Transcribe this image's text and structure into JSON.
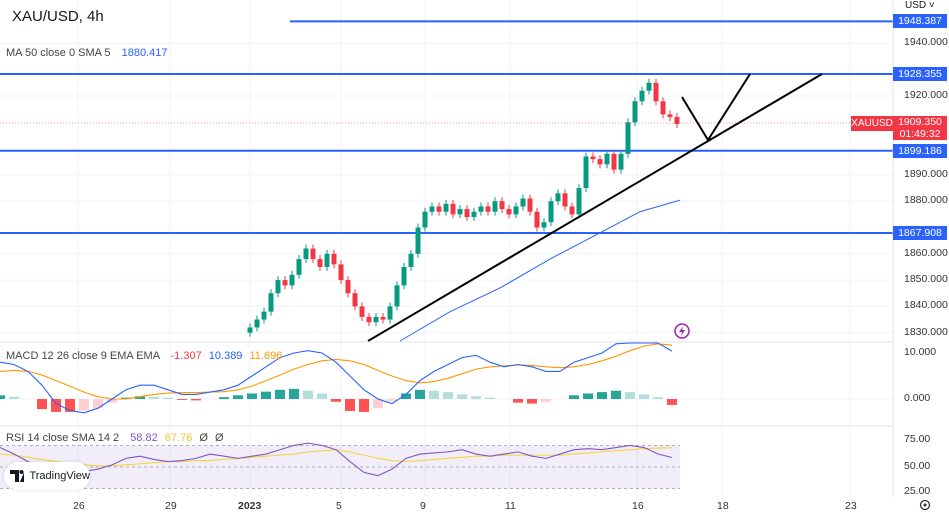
{
  "header": {
    "symbol_title": "XAU/USD, 4h",
    "currency": "USD ˅"
  },
  "ma_indicator": {
    "label": "MA 50 close 0 SMA 5",
    "value": "1880.417"
  },
  "macd_indicator": {
    "label": "MACD 12 26 close 9 EMA EMA",
    "hist": "-1.307",
    "macd": "10.389",
    "signal": "11.696"
  },
  "rsi_indicator": {
    "label": "RSI 14 close SMA 14 2",
    "rsi": "58.82",
    "ma": "67.76",
    "extra1": "Ø",
    "extra2": "Ø"
  },
  "price_axis": [
    "1940.000",
    "1920.000",
    "1890.000",
    "1880.000",
    "1860.000",
    "1850.000",
    "1840.000",
    "1830.000"
  ],
  "level_tags": [
    "1948.387",
    "1928.355",
    "1899.186",
    "1867.908"
  ],
  "current_price": {
    "symbol": "XAUUSD",
    "price": "1909.350",
    "countdown": "01:49:32"
  },
  "macd_axis": [
    "10.000",
    "0.000"
  ],
  "rsi_axis": [
    "75.00",
    "50.00",
    "25.00"
  ],
  "time_axis": [
    "26",
    "29",
    "2023",
    "5",
    "9",
    "11",
    "16",
    "18",
    "23"
  ],
  "branding": {
    "logo_text": "TradingView"
  },
  "colors": {
    "up": "#089981",
    "down": "#f23645",
    "level": "#2962ff",
    "ma": "#2962ff",
    "macd": "#2962ff",
    "signal": "#ff9800",
    "rsi": "#7e57c2",
    "rsi_ma": "#f5d33f"
  },
  "chart_data": {
    "type": "candlestick",
    "price_range": [
      1826,
      1952
    ],
    "horizontal_levels": [
      1948.387,
      1928.355,
      1899.186,
      1867.908
    ],
    "closes": [
      1832,
      1835,
      1838,
      1845,
      1850,
      1848,
      1852,
      1858,
      1862,
      1858,
      1855,
      1860,
      1856,
      1850,
      1845,
      1840,
      1836,
      1834,
      1836,
      1835,
      1840,
      1848,
      1855,
      1860,
      1870,
      1876,
      1878,
      1876,
      1879,
      1875,
      1877,
      1874,
      1876,
      1878,
      1876,
      1880,
      1877,
      1875,
      1878,
      1881,
      1876,
      1870,
      1872,
      1880,
      1883,
      1878,
      1875,
      1885,
      1897,
      1896,
      1894,
      1898,
      1892,
      1898,
      1910,
      1918,
      1922,
      1925,
      1918,
      1913,
      1912,
      1909.35
    ],
    "ma50": [
      1826,
      1838,
      1847,
      1858,
      1868,
      1876,
      1880.417
    ],
    "macd": [
      8,
      7.5,
      6,
      3,
      -1,
      -2.5,
      -3,
      -2,
      0,
      2,
      3,
      3,
      2,
      1,
      1,
      1.5,
      2,
      3,
      5,
      7,
      9,
      10,
      10.5,
      10,
      8,
      5,
      2,
      0,
      -1,
      1,
      4,
      6,
      7.5,
      9,
      9.5,
      8,
      7,
      7.5,
      7,
      6,
      6,
      8,
      9,
      10,
      12,
      13,
      13.5,
      12.5,
      10.4
    ],
    "signal": [
      6,
      6.2,
      6,
      5.2,
      4,
      2.8,
      1.5,
      0.5,
      0,
      0,
      0.5,
      1,
      1.3,
      1.4,
      1.4,
      1.5,
      1.6,
      2,
      2.8,
      4,
      5.2,
      6.5,
      7.5,
      8.3,
      8.6,
      8.3,
      7.5,
      6.2,
      5,
      4,
      3.5,
      3.8,
      4.5,
      5.5,
      6.5,
      7,
      7.2,
      7.4,
      7.3,
      7,
      6.8,
      7,
      7.5,
      8.3,
      9.3,
      10.5,
      11.5,
      12,
      11.7
    ],
    "histogram": [
      0.8,
      0.5,
      0,
      -2.2,
      -2.8,
      -2.8,
      -2.5,
      -2,
      -0.8,
      0.3,
      0.6,
      0.5,
      0.3,
      -0.2,
      -0.3,
      0,
      0.4,
      0.8,
      1.2,
      1.6,
      2,
      2.2,
      1.8,
      1.2,
      -0.6,
      -2.6,
      -2.8,
      -2,
      -0.5,
      1.2,
      2,
      1.8,
      1.5,
      1,
      0.6,
      0.3,
      0,
      -0.8,
      -1,
      -0.6,
      0,
      0.8,
      1.2,
      1.5,
      1.8,
      1.5,
      1,
      0.4,
      -1.3
    ],
    "rsi": [
      68,
      62,
      55,
      50,
      47,
      45,
      46,
      48,
      52,
      58,
      60,
      57,
      55,
      56,
      58,
      62,
      60,
      58,
      60,
      62,
      66,
      70,
      72,
      70,
      66,
      55,
      45,
      42,
      48,
      58,
      62,
      63,
      64,
      66,
      62,
      60,
      62,
      64,
      60,
      58,
      62,
      66,
      67,
      66,
      68,
      70,
      68,
      62,
      58.82
    ],
    "rsi_ma": [
      62,
      61,
      59,
      57,
      55,
      53,
      52,
      51,
      51,
      52,
      53,
      54,
      55,
      55,
      56,
      56,
      57,
      58,
      59,
      60,
      61,
      62,
      64,
      65,
      66,
      64,
      61,
      58,
      56,
      55,
      56,
      57,
      58,
      59,
      60,
      60,
      61,
      61,
      61,
      61,
      61,
      62,
      63,
      64,
      65,
      66,
      67,
      67.5,
      67.76
    ],
    "rsi_bands": [
      70,
      50,
      30
    ]
  }
}
